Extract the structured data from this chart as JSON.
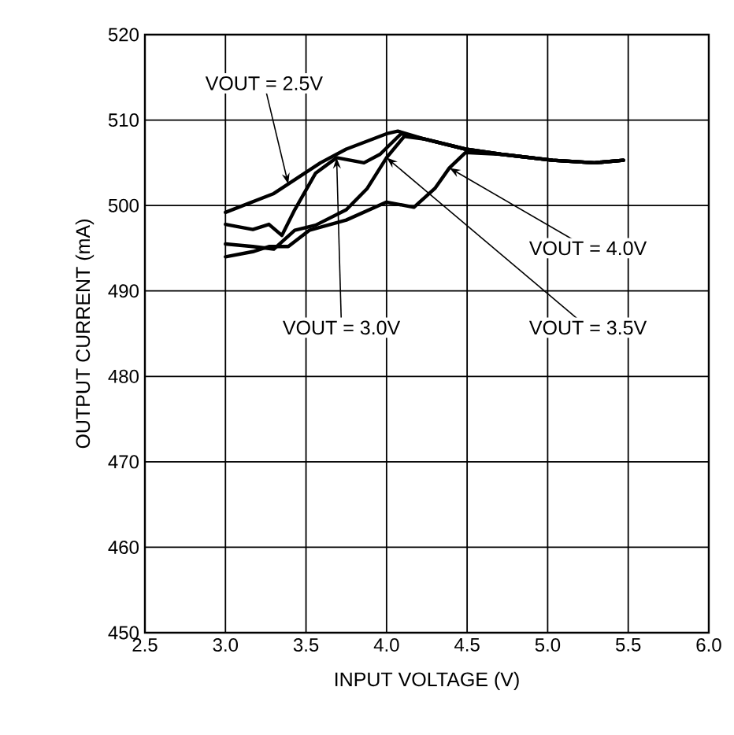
{
  "chart_data": {
    "type": "line",
    "xlabel": "INPUT VOLTAGE (V)",
    "ylabel": "OUTPUT CURRENT (mA)",
    "xlim": [
      2.5,
      6.0
    ],
    "ylim": [
      450,
      520
    ],
    "xticks": [
      2.5,
      {
        "value": 3.0,
        "label": "3.0"
      },
      3.5,
      {
        "value": 4.0,
        "label": "4.0"
      },
      4.5,
      {
        "value": 5.0,
        "label": "5.0"
      },
      5.5,
      {
        "value": 6.0,
        "label": "6.0"
      }
    ],
    "yticks": [
      450,
      460,
      470,
      480,
      490,
      500,
      510,
      520
    ],
    "grid": true,
    "marker": "none",
    "line_style": "solid",
    "series": [
      {
        "color": "#000000",
        "x": [
          3.0,
          3.3,
          3.59,
          3.75,
          4.0,
          4.07,
          4.23,
          4.49,
          4.71,
          5.03,
          5.29,
          5.47
        ],
        "values": [
          499.2,
          501.4,
          505.0,
          506.6,
          508.4,
          508.7,
          507.8,
          506.6,
          506.0,
          505.3,
          505.0,
          505.3
        ]
      },
      {
        "color": "#000000",
        "x": [
          3.0,
          3.17,
          3.27,
          3.35,
          3.43,
          3.56,
          3.69,
          3.86,
          3.96,
          4.09,
          4.23,
          4.49,
          4.71,
          5.03,
          5.29,
          5.47
        ],
        "values": [
          497.8,
          497.2,
          497.8,
          496.5,
          499.5,
          503.8,
          505.6,
          505.0,
          506.0,
          508.4,
          507.8,
          506.6,
          506.0,
          505.3,
          505.0,
          505.3
        ]
      },
      {
        "color": "#000000",
        "x": [
          3.0,
          3.17,
          3.3,
          3.43,
          3.56,
          3.75,
          3.88,
          4.0,
          4.11,
          4.23,
          4.49,
          4.71,
          5.03,
          5.29,
          5.47
        ],
        "values": [
          495.5,
          495.2,
          494.9,
          497.1,
          497.7,
          499.5,
          502.0,
          505.6,
          508.1,
          507.8,
          506.6,
          506.0,
          505.3,
          505.0,
          505.3
        ]
      },
      {
        "color": "#000000",
        "x": [
          3.0,
          3.17,
          3.27,
          3.39,
          3.52,
          3.75,
          4.0,
          4.17,
          4.3,
          4.39,
          4.49,
          4.71,
          5.03,
          5.29,
          5.47
        ],
        "values": [
          494.0,
          494.6,
          495.2,
          495.2,
          497.1,
          498.3,
          500.4,
          499.8,
          502.0,
          504.4,
          506.2,
          506.0,
          505.3,
          505.0,
          505.3
        ]
      }
    ],
    "annotations": [
      {
        "text": "VOUT = 2.5V",
        "x": 3.39,
        "y": 502.5
      },
      {
        "text": "VOUT = 4.0V",
        "x": 4.39,
        "y": 504.4
      },
      {
        "text": "VOUT = 3.0V",
        "x": 3.69,
        "y": 505.6
      },
      {
        "text": "VOUT = 3.5V",
        "x": 4.0,
        "y": 505.6
      }
    ]
  }
}
